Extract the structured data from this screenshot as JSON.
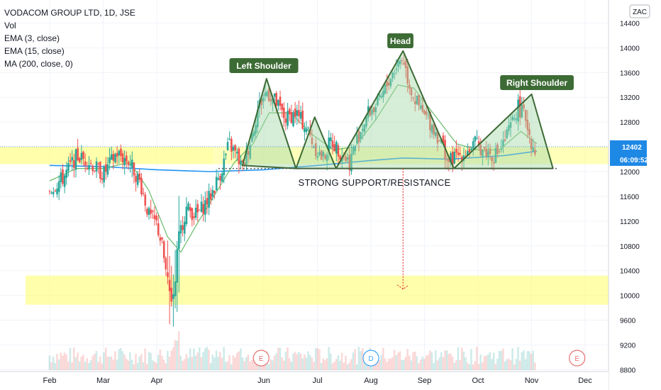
{
  "legend": {
    "title": "VODACOM GROUP LTD, 1D, JSE",
    "studies": [
      "Vol",
      "EMA (3, close)",
      "EMA (15, close)",
      "MA (200, close, 0)"
    ]
  },
  "currency_label": "ZAC",
  "price_label": "12402",
  "countdown_label": "06:09:52",
  "annotations": {
    "left_shoulder": "Left Shoulder",
    "head": "Head",
    "right_shoulder": "Right Shoulder",
    "support": "STRONG SUPPORT/RESISTANCE"
  },
  "events": [
    {
      "letter": "E",
      "month_pos": 3.95,
      "color": "#e57373"
    },
    {
      "letter": "D",
      "month_pos": 6.0,
      "color": "#42a5f5"
    },
    {
      "letter": "E",
      "month_pos": 9.85,
      "color": "#e57373"
    }
  ],
  "colors": {
    "up": "#26a69a",
    "down": "#ef5350",
    "ema15": "#66bb6a",
    "ma200": "#2196f3",
    "pattern_fill": "#a5d6a7",
    "pattern_stroke": "#3d6b35",
    "tag_bg": "#3d6b35",
    "zone": "#ffff66",
    "target_arrow": "#e53935",
    "price_tag": "#1e88e5"
  },
  "chart_data": {
    "type": "candlestick",
    "title": "VODACOM GROUP LTD, 1D, JSE",
    "y_ticks": [
      8800,
      9200,
      9600,
      10000,
      10400,
      10800,
      11200,
      11600,
      12000,
      12400,
      12800,
      13200,
      13600,
      14000,
      14400
    ],
    "x_ticks": [
      "Feb",
      "Mar",
      "Apr",
      "Jun",
      "Jul",
      "Aug",
      "Sep",
      "Oct",
      "Nov",
      "Dec"
    ],
    "ylim": [
      8760,
      14650
    ],
    "last_price": 12402,
    "close_series": [
      {
        "m": 0.0,
        "v": 11700
      },
      {
        "m": 0.25,
        "v": 11900
      },
      {
        "m": 0.5,
        "v": 12250
      },
      {
        "m": 0.75,
        "v": 12150
      },
      {
        "m": 1.0,
        "v": 11950
      },
      {
        "m": 1.25,
        "v": 12300
      },
      {
        "m": 1.5,
        "v": 12150
      },
      {
        "m": 1.7,
        "v": 11800
      },
      {
        "m": 1.85,
        "v": 11300
      },
      {
        "m": 2.0,
        "v": 11150
      },
      {
        "m": 2.1,
        "v": 10800
      },
      {
        "m": 2.2,
        "v": 10200
      },
      {
        "m": 2.3,
        "v": 9800
      },
      {
        "m": 2.4,
        "v": 10900
      },
      {
        "m": 2.55,
        "v": 11400
      },
      {
        "m": 2.75,
        "v": 11300
      },
      {
        "m": 3.0,
        "v": 11600
      },
      {
        "m": 3.2,
        "v": 12000
      },
      {
        "m": 3.35,
        "v": 12450
      },
      {
        "m": 3.5,
        "v": 12250
      },
      {
        "m": 3.6,
        "v": 12050
      },
      {
        "m": 3.75,
        "v": 12500
      },
      {
        "m": 3.9,
        "v": 13050
      },
      {
        "m": 4.05,
        "v": 13300
      },
      {
        "m": 4.2,
        "v": 13150
      },
      {
        "m": 4.4,
        "v": 12850
      },
      {
        "m": 4.6,
        "v": 12950
      },
      {
        "m": 4.8,
        "v": 12700
      },
      {
        "m": 4.95,
        "v": 12400
      },
      {
        "m": 5.1,
        "v": 12200
      },
      {
        "m": 5.25,
        "v": 12500
      },
      {
        "m": 5.45,
        "v": 12300
      },
      {
        "m": 5.6,
        "v": 12150
      },
      {
        "m": 5.75,
        "v": 12550
      },
      {
        "m": 5.95,
        "v": 12950
      },
      {
        "m": 6.15,
        "v": 13100
      },
      {
        "m": 6.35,
        "v": 13500
      },
      {
        "m": 6.5,
        "v": 13750
      },
      {
        "m": 6.6,
        "v": 13850
      },
      {
        "m": 6.7,
        "v": 13450
      },
      {
        "m": 6.8,
        "v": 13200
      },
      {
        "m": 6.95,
        "v": 12950
      },
      {
        "m": 7.1,
        "v": 12800
      },
      {
        "m": 7.3,
        "v": 12500
      },
      {
        "m": 7.45,
        "v": 12150
      },
      {
        "m": 7.6,
        "v": 12250
      },
      {
        "m": 7.75,
        "v": 12300
      },
      {
        "m": 7.95,
        "v": 12450
      },
      {
        "m": 8.1,
        "v": 12350
      },
      {
        "m": 8.3,
        "v": 12250
      },
      {
        "m": 8.45,
        "v": 12400
      },
      {
        "m": 8.6,
        "v": 12700
      },
      {
        "m": 8.75,
        "v": 13050
      },
      {
        "m": 8.9,
        "v": 12850
      },
      {
        "m": 9.0,
        "v": 12450
      },
      {
        "m": 9.1,
        "v": 12350
      }
    ],
    "ema15": [
      {
        "m": 0.0,
        "v": 11850
      },
      {
        "m": 0.5,
        "v": 12050
      },
      {
        "m": 1.0,
        "v": 12050
      },
      {
        "m": 1.5,
        "v": 12150
      },
      {
        "m": 1.85,
        "v": 11700
      },
      {
        "m": 2.2,
        "v": 10950
      },
      {
        "m": 2.45,
        "v": 10700
      },
      {
        "m": 2.75,
        "v": 11150
      },
      {
        "m": 3.1,
        "v": 11650
      },
      {
        "m": 3.45,
        "v": 12150
      },
      {
        "m": 3.8,
        "v": 12450
      },
      {
        "m": 4.1,
        "v": 12950
      },
      {
        "m": 4.5,
        "v": 12950
      },
      {
        "m": 4.9,
        "v": 12600
      },
      {
        "m": 5.3,
        "v": 12350
      },
      {
        "m": 5.7,
        "v": 12400
      },
      {
        "m": 6.1,
        "v": 12850
      },
      {
        "m": 6.5,
        "v": 13400
      },
      {
        "m": 6.8,
        "v": 13350
      },
      {
        "m": 7.2,
        "v": 12900
      },
      {
        "m": 7.6,
        "v": 12450
      },
      {
        "m": 8.0,
        "v": 12350
      },
      {
        "m": 8.4,
        "v": 12350
      },
      {
        "m": 8.8,
        "v": 12650
      },
      {
        "m": 9.1,
        "v": 12450
      }
    ],
    "ma200": [
      {
        "m": 0.0,
        "v": 12100
      },
      {
        "m": 1.0,
        "v": 12080
      },
      {
        "m": 2.0,
        "v": 12030
      },
      {
        "m": 3.0,
        "v": 12000
      },
      {
        "m": 4.0,
        "v": 12030
      },
      {
        "m": 5.0,
        "v": 12100
      },
      {
        "m": 6.0,
        "v": 12180
      },
      {
        "m": 6.6,
        "v": 12220
      },
      {
        "m": 7.5,
        "v": 12200
      },
      {
        "m": 8.5,
        "v": 12260
      },
      {
        "m": 9.1,
        "v": 12330
      }
    ],
    "pattern_triangles": [
      {
        "name": "Left Shoulder",
        "points": [
          [
            3.6,
            12100
          ],
          [
            4.05,
            13500
          ],
          [
            4.6,
            12050
          ]
        ]
      },
      {
        "name": "Left Shoulder",
        "points": [
          [
            4.6,
            12050
          ],
          [
            4.95,
            12880
          ],
          [
            5.35,
            12050
          ]
        ]
      },
      {
        "name": "Head",
        "points": [
          [
            5.35,
            12050
          ],
          [
            6.6,
            13950
          ],
          [
            7.55,
            12050
          ]
        ]
      },
      {
        "name": "Right Shoulder",
        "points": [
          [
            7.55,
            12050
          ],
          [
            9.0,
            13250
          ],
          [
            9.4,
            12050
          ]
        ]
      }
    ],
    "support_level": 12050,
    "zones": [
      {
        "low": 12120,
        "high": 12400
      },
      {
        "low": 9850,
        "high": 10320
      }
    ],
    "target_level": 10100,
    "volume_note": "Vol"
  }
}
